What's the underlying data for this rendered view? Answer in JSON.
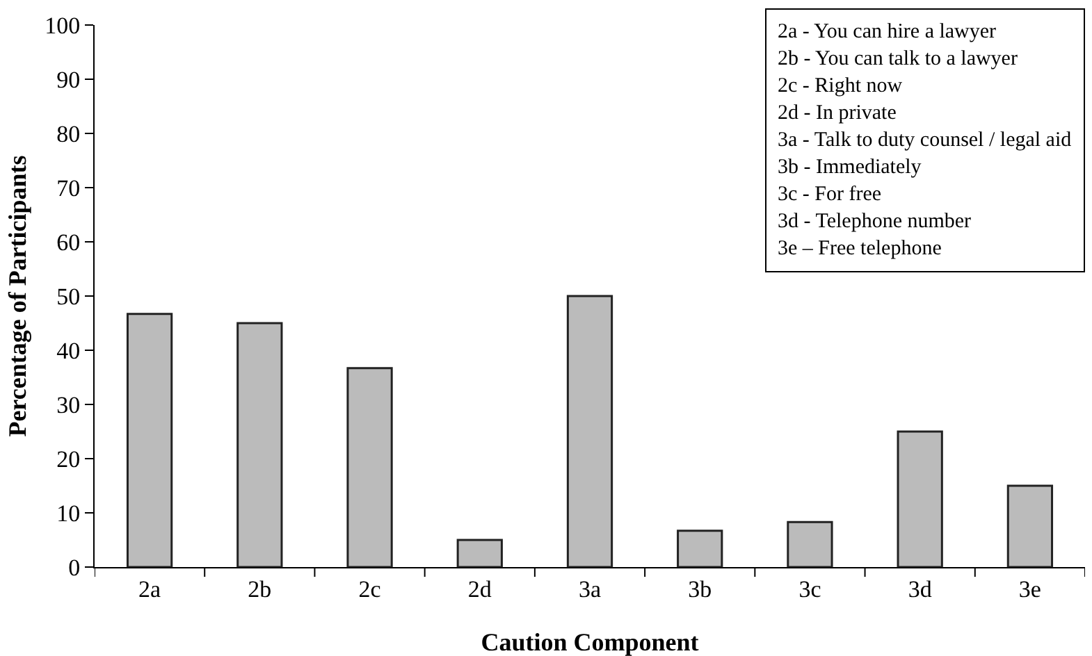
{
  "chart_data": {
    "type": "bar",
    "xlabel": "Caution Component",
    "ylabel": "Percentage of Participants",
    "categories": [
      "2a",
      "2b",
      "2c",
      "2d",
      "3a",
      "3b",
      "3c",
      "3d",
      "3e"
    ],
    "values": [
      46.7,
      45,
      36.7,
      5,
      50,
      6.7,
      8.3,
      25,
      15
    ],
    "color": "#bbbbbb",
    "ylim": [
      0,
      100
    ],
    "yticks": [
      0,
      10,
      20,
      30,
      40,
      50,
      60,
      70,
      80,
      90,
      100
    ],
    "grid": false,
    "legend": false,
    "annotations": [
      "2a - You can hire a lawyer",
      "2b - You can talk to a lawyer",
      "2c - Right now",
      "2d - In private",
      "3a - Talk to duty counsel / legal aid",
      "3b - Immediately",
      "3c - For free",
      "3d - Telephone number",
      "3e – Free telephone"
    ]
  }
}
